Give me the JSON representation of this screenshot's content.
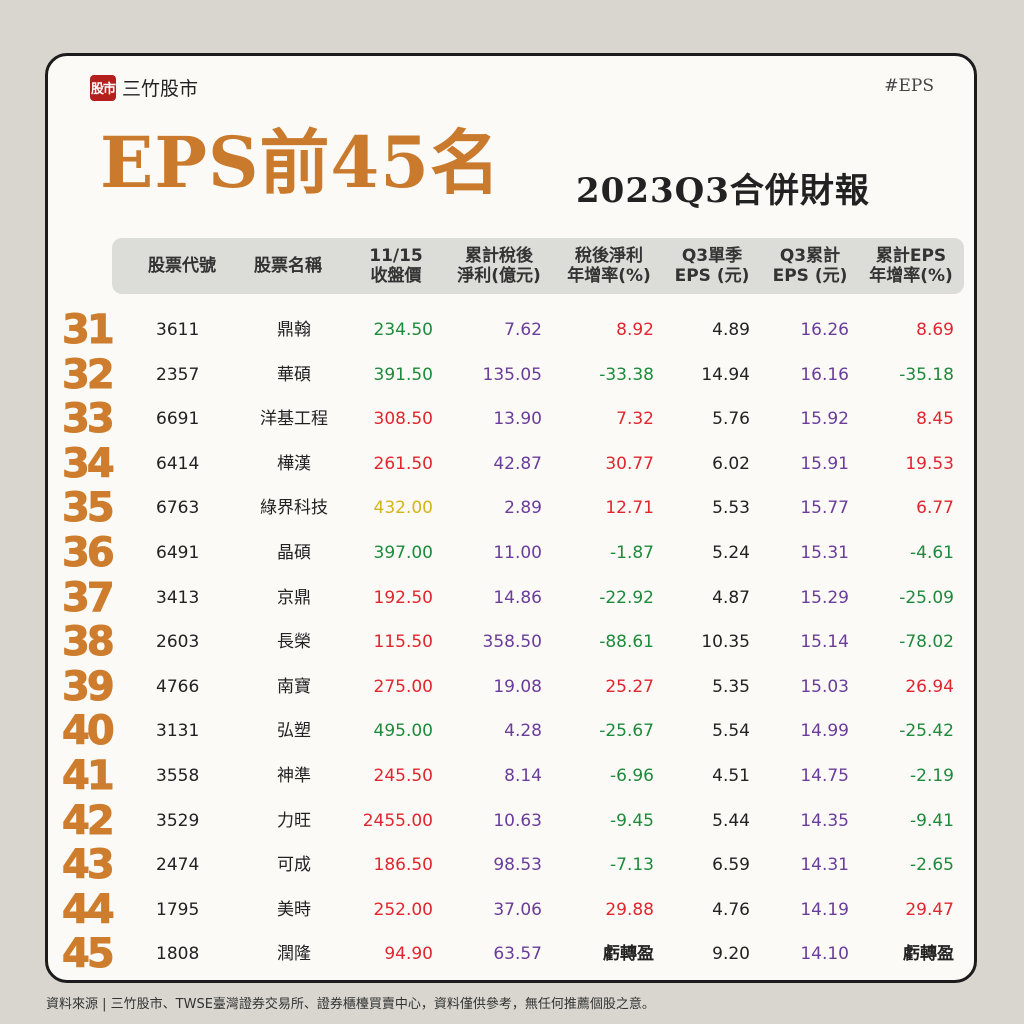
{
  "brand": {
    "logo_text": "股市",
    "name": "三竹股市"
  },
  "hashtag": "#EPS",
  "title": {
    "main": "EPS前45名",
    "sub": "2023Q3合併財報"
  },
  "headers": [
    {
      "line1": "股票代號",
      "line2": ""
    },
    {
      "line1": "股票名稱",
      "line2": ""
    },
    {
      "line1": "11/15",
      "line2": "收盤價"
    },
    {
      "line1": "累計稅後",
      "line2": "淨利(億元)"
    },
    {
      "line1": "稅後淨利",
      "line2": "年增率(%)"
    },
    {
      "line1": "Q3單季",
      "line2": "EPS (元)"
    },
    {
      "line1": "Q3累計",
      "line2": "EPS (元)"
    },
    {
      "line1": "累計EPS",
      "line2": "年增率(%)"
    }
  ],
  "colors": {
    "green": "#1e8a3c",
    "red": "#e0262f",
    "yellow": "#d4b51a",
    "purple": "#6a3d9a",
    "dark": "#222222",
    "rank": "#cd7d2d",
    "title": "#c97a2c"
  },
  "rows": [
    {
      "rank": "31",
      "code": "3611",
      "name": "鼎翰",
      "price": "234.50",
      "price_color": "green",
      "profit": "7.62",
      "growth": "8.92",
      "growth_color": "red",
      "q3": "4.89",
      "cum": "16.26",
      "epsg": "8.69",
      "epsg_color": "red"
    },
    {
      "rank": "32",
      "code": "2357",
      "name": "華碩",
      "price": "391.50",
      "price_color": "green",
      "profit": "135.05",
      "growth": "-33.38",
      "growth_color": "green",
      "q3": "14.94",
      "cum": "16.16",
      "epsg": "-35.18",
      "epsg_color": "green"
    },
    {
      "rank": "33",
      "code": "6691",
      "name": "洋基工程",
      "price": "308.50",
      "price_color": "red",
      "profit": "13.90",
      "growth": "7.32",
      "growth_color": "red",
      "q3": "5.76",
      "cum": "15.92",
      "epsg": "8.45",
      "epsg_color": "red"
    },
    {
      "rank": "34",
      "code": "6414",
      "name": "樺漢",
      "price": "261.50",
      "price_color": "red",
      "profit": "42.87",
      "growth": "30.77",
      "growth_color": "red",
      "q3": "6.02",
      "cum": "15.91",
      "epsg": "19.53",
      "epsg_color": "red"
    },
    {
      "rank": "35",
      "code": "6763",
      "name": "綠界科技",
      "price": "432.00",
      "price_color": "yellow",
      "profit": "2.89",
      "growth": "12.71",
      "growth_color": "red",
      "q3": "5.53",
      "cum": "15.77",
      "epsg": "6.77",
      "epsg_color": "red"
    },
    {
      "rank": "36",
      "code": "6491",
      "name": "晶碩",
      "price": "397.00",
      "price_color": "green",
      "profit": "11.00",
      "growth": "-1.87",
      "growth_color": "green",
      "q3": "5.24",
      "cum": "15.31",
      "epsg": "-4.61",
      "epsg_color": "green"
    },
    {
      "rank": "37",
      "code": "3413",
      "name": "京鼎",
      "price": "192.50",
      "price_color": "red",
      "profit": "14.86",
      "growth": "-22.92",
      "growth_color": "green",
      "q3": "4.87",
      "cum": "15.29",
      "epsg": "-25.09",
      "epsg_color": "green"
    },
    {
      "rank": "38",
      "code": "2603",
      "name": "長榮",
      "price": "115.50",
      "price_color": "red",
      "profit": "358.50",
      "growth": "-88.61",
      "growth_color": "green",
      "q3": "10.35",
      "cum": "15.14",
      "epsg": "-78.02",
      "epsg_color": "green"
    },
    {
      "rank": "39",
      "code": "4766",
      "name": "南寶",
      "price": "275.00",
      "price_color": "red",
      "profit": "19.08",
      "growth": "25.27",
      "growth_color": "red",
      "q3": "5.35",
      "cum": "15.03",
      "epsg": "26.94",
      "epsg_color": "red"
    },
    {
      "rank": "40",
      "code": "3131",
      "name": "弘塑",
      "price": "495.00",
      "price_color": "green",
      "profit": "4.28",
      "growth": "-25.67",
      "growth_color": "green",
      "q3": "5.54",
      "cum": "14.99",
      "epsg": "-25.42",
      "epsg_color": "green"
    },
    {
      "rank": "41",
      "code": "3558",
      "name": "神準",
      "price": "245.50",
      "price_color": "red",
      "profit": "8.14",
      "growth": "-6.96",
      "growth_color": "green",
      "q3": "4.51",
      "cum": "14.75",
      "epsg": "-2.19",
      "epsg_color": "green"
    },
    {
      "rank": "42",
      "code": "3529",
      "name": "力旺",
      "price": "2455.00",
      "price_color": "red",
      "profit": "10.63",
      "growth": "-9.45",
      "growth_color": "green",
      "q3": "5.44",
      "cum": "14.35",
      "epsg": "-9.41",
      "epsg_color": "green"
    },
    {
      "rank": "43",
      "code": "2474",
      "name": "可成",
      "price": "186.50",
      "price_color": "red",
      "profit": "98.53",
      "growth": "-7.13",
      "growth_color": "green",
      "q3": "6.59",
      "cum": "14.31",
      "epsg": "-2.65",
      "epsg_color": "green"
    },
    {
      "rank": "44",
      "code": "1795",
      "name": "美時",
      "price": "252.00",
      "price_color": "red",
      "profit": "37.06",
      "growth": "29.88",
      "growth_color": "red",
      "q3": "4.76",
      "cum": "14.19",
      "epsg": "29.47",
      "epsg_color": "red"
    },
    {
      "rank": "45",
      "code": "1808",
      "name": "潤隆",
      "price": "94.90",
      "price_color": "red",
      "profit": "63.57",
      "growth": "虧轉盈",
      "growth_color": "dark",
      "q3": "9.20",
      "cum": "14.10",
      "epsg": "虧轉盈",
      "epsg_color": "dark"
    }
  ],
  "footer": "資料來源 | 三竹股市、TWSE臺灣證券交易所、證券櫃檯買賣中心，資料僅供參考，無任何推薦個股之意。"
}
